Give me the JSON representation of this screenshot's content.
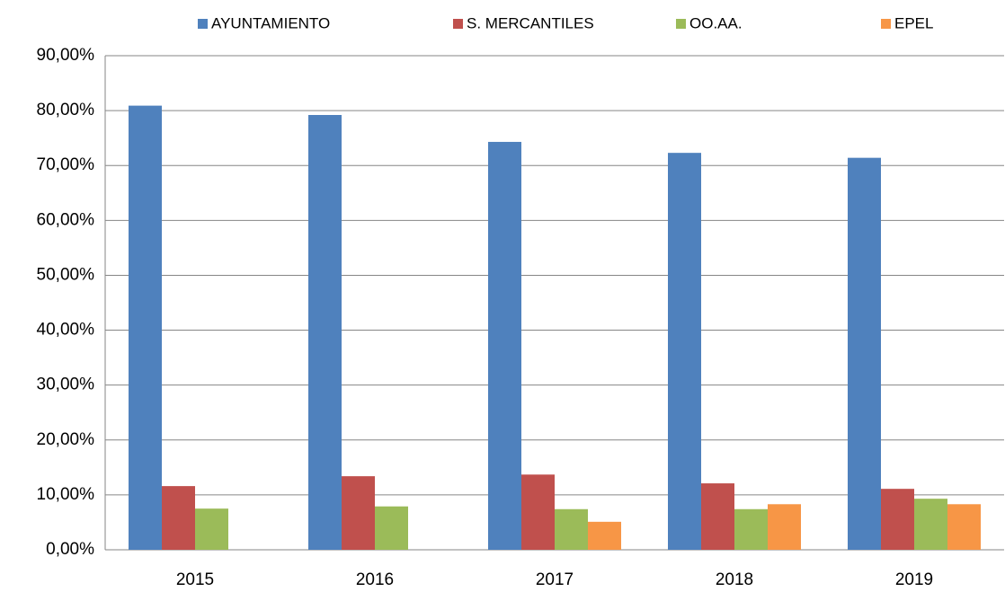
{
  "chart_data": {
    "type": "bar",
    "categories": [
      "2015",
      "2016",
      "2017",
      "2018",
      "2019"
    ],
    "series": [
      {
        "name": "AYUNTAMIENTO",
        "color": "#4f81bd",
        "values": [
          80.9,
          79.2,
          74.3,
          72.3,
          71.4
        ]
      },
      {
        "name": "S. MERCANTILES",
        "color": "#c0504d",
        "values": [
          11.6,
          13.4,
          13.7,
          12.1,
          11.1
        ]
      },
      {
        "name": "OO.AA.",
        "color": "#9bbb59",
        "values": [
          7.5,
          7.9,
          7.4,
          7.4,
          9.3
        ]
      },
      {
        "name": "EPEL",
        "color": "#f79646",
        "values": [
          null,
          null,
          5.1,
          8.3,
          8.3
        ]
      }
    ],
    "ylim": [
      0,
      90
    ],
    "yticks": [
      {
        "value": 0,
        "label": "0,00%"
      },
      {
        "value": 10,
        "label": "10,00%"
      },
      {
        "value": 20,
        "label": "20,00%"
      },
      {
        "value": 30,
        "label": "30,00%"
      },
      {
        "value": 40,
        "label": "40,00%"
      },
      {
        "value": 50,
        "label": "50,00%"
      },
      {
        "value": 60,
        "label": "60,00%"
      },
      {
        "value": 70,
        "label": "70,00%"
      },
      {
        "value": 80,
        "label": "80,00%"
      },
      {
        "value": 90,
        "label": "90,00%"
      }
    ],
    "grid": true,
    "legend": "top"
  }
}
